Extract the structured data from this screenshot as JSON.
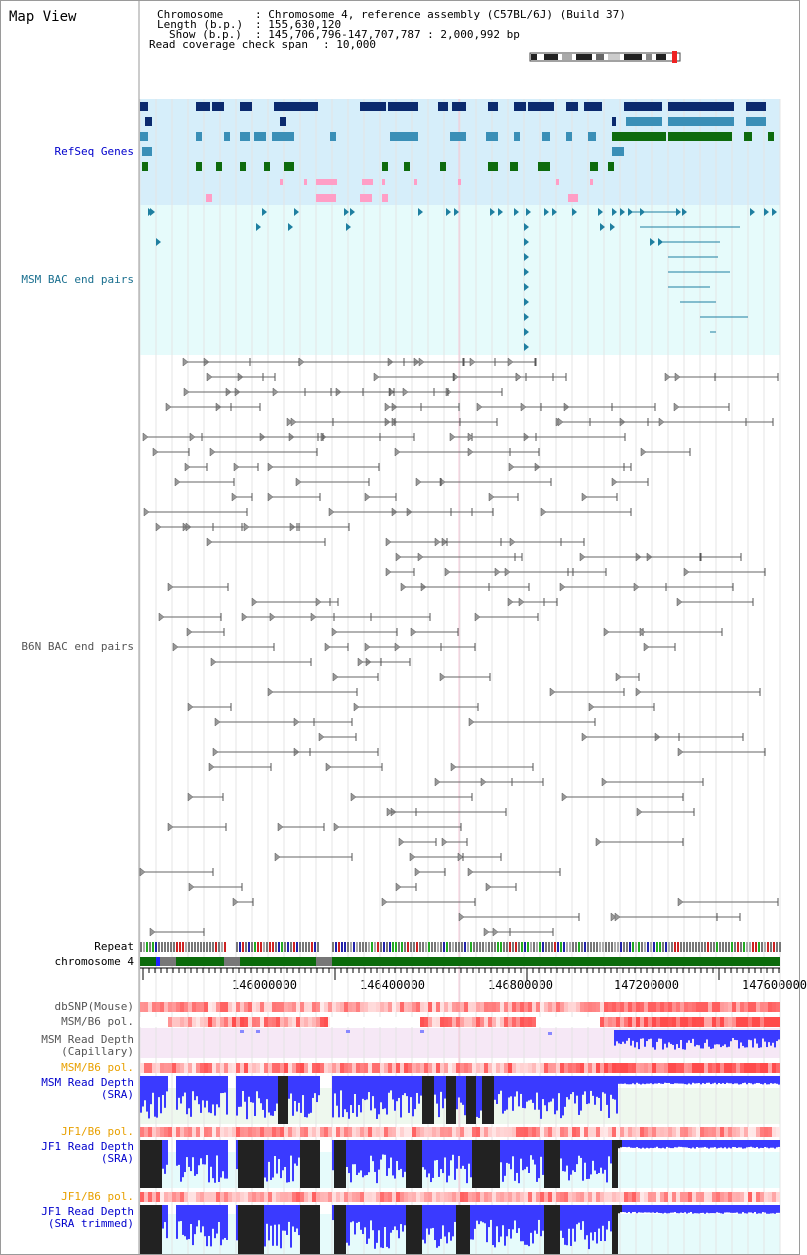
{
  "header": {
    "title": "Map View",
    "chromosome_label": "Chromosome",
    "chromosome_value": ": Chromosome 4, reference assembly (C57BL/6J) (Build 37)",
    "length_label": "Length (b.p.)",
    "length_value": ": 155,630,120",
    "show_label": "Show (b.p.)",
    "show_value": ": 145,706,796-147,707,787 : 2,000,992 bp",
    "coverage_label": "Read coverage check span",
    "coverage_value": ": 10,000"
  },
  "tracks": {
    "refseq": "RefSeq Genes",
    "msm_bac": "MSM BAC end pairs",
    "b6n_bac": "B6N BAC end pairs",
    "repeat": "Repeat",
    "chromosome": "chromosome 4",
    "dbsnp": "dbSNP(Mouse)",
    "msm_b6_pol": "MSM/B6 pol.",
    "msm_read_depth_cap_1": "MSM Read Depth",
    "msm_read_depth_cap_2": "(Capillary)",
    "msm_b6_pol2": "MSM/B6 pol.",
    "msm_read_depth_sra_1": "MSM Read Depth",
    "msm_read_depth_sra_2": "(SRA)",
    "jf1_b6_pol": "JF1/B6 pol.",
    "jf1_read_depth_sra_1": "JF1 Read Depth",
    "jf1_read_depth_sra_2": "(SRA)",
    "jf1_b6_pol2": "JF1/B6 pol.",
    "jf1_read_depth_trim_1": "JF1 Read Depth",
    "jf1_read_depth_trim_2": "(SRA trimmed)"
  },
  "axis": {
    "ticks": [
      "146000000",
      "146400000",
      "146800000",
      "147200000",
      "147600000"
    ]
  },
  "colors": {
    "refseq_bg": "#d6eefa",
    "msm_bg": "#e6fbfb",
    "navy": "#0b2a6e",
    "teal": "#3a8fb7",
    "green": "#0e6b0e",
    "pink": "#ff9ec6",
    "chrom_green": "#0b6b0b",
    "depth_blue": "#3a3aff",
    "depth_bg": "#eef8ee"
  }
}
